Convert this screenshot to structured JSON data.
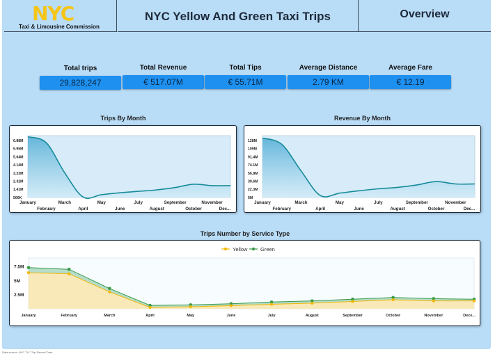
{
  "header": {
    "logo_text": "NYC",
    "logo_subtitle": "Taxi & Limousine Commission",
    "title": "NYC Yellow And Green Taxi Trips",
    "overview": "Overview"
  },
  "kpis": [
    {
      "label": "Total trips",
      "value": "29,828,247"
    },
    {
      "label": "Total Revenue",
      "value": "€ 517.07M"
    },
    {
      "label": "Total Tips",
      "value": "€ 55.71M"
    },
    {
      "label": "Average Distance",
      "value": "2.79 KM"
    },
    {
      "label": "Average Fare",
      "value": "€ 12.19"
    }
  ],
  "colors": {
    "background": "#b9dcf7",
    "kpi_box": "#1e90f0",
    "line_teal": "#168a9a",
    "yellow": "#f2b705",
    "green": "#3a9a4a"
  },
  "chart_data": [
    {
      "type": "area",
      "title": "Trips By Month",
      "months_top": [
        "January",
        "March",
        "May",
        "July",
        "September",
        "November"
      ],
      "months_bottom": [
        "February",
        "April",
        "June",
        "August",
        "October",
        "Dec..."
      ],
      "y_ticks": [
        "6.88M",
        "5.95M",
        "5.04M",
        "4.14M",
        "3.23M",
        "2.32M",
        "1.41M",
        "500K"
      ],
      "x": [
        "January",
        "February",
        "March",
        "April",
        "May",
        "June",
        "July",
        "August",
        "September",
        "October",
        "November",
        "December"
      ],
      "values": [
        6.88,
        6.25,
        3.1,
        0.55,
        0.8,
        1.0,
        1.15,
        1.3,
        1.55,
        1.9,
        1.75,
        1.75
      ],
      "ylim": [
        0.5,
        7.0
      ],
      "unit": "M"
    },
    {
      "type": "area",
      "title": "Revenue By Month",
      "months_top": [
        "January",
        "March",
        "May",
        "July",
        "September",
        "November"
      ],
      "months_bottom": [
        "February",
        "April",
        "June",
        "August",
        "October",
        "Dec..."
      ],
      "y_ticks": [
        "128M",
        "109M",
        "91.4M",
        "74.1M",
        "56.8M",
        "39.6M",
        "22.3M",
        "5M"
      ],
      "x": [
        "January",
        "February",
        "March",
        "April",
        "May",
        "June",
        "July",
        "August",
        "September",
        "October",
        "November",
        "December"
      ],
      "values": [
        128,
        115,
        60,
        9,
        14,
        19,
        23,
        26,
        31,
        38,
        33,
        33
      ],
      "ylim": [
        5,
        133
      ],
      "unit": "M"
    },
    {
      "type": "area",
      "title": "Trips Number by Service Type",
      "legend": [
        "Yellow",
        "Green"
      ],
      "y_ticks": [
        "7.5M",
        "5M",
        "2.5M"
      ],
      "x": [
        "January",
        "February",
        "March",
        "April",
        "May",
        "June",
        "July",
        "August",
        "September",
        "October",
        "November",
        "December"
      ],
      "x_labels": [
        "January",
        "February",
        "March",
        "April",
        "May",
        "June",
        "July",
        "August",
        "September",
        "October",
        "November",
        "Dece..."
      ],
      "series": [
        {
          "name": "Yellow",
          "values": [
            6.4,
            6.2,
            3.0,
            0.25,
            0.35,
            0.55,
            0.8,
            1.0,
            1.3,
            1.6,
            1.4,
            1.4
          ]
        },
        {
          "name": "Green",
          "values": [
            7.3,
            7.0,
            3.6,
            0.6,
            0.7,
            0.9,
            1.2,
            1.4,
            1.7,
            2.0,
            1.8,
            1.7
          ]
        }
      ],
      "ylim": [
        0,
        9
      ]
    }
  ],
  "footnote": "Data source: NYC TLC Trip Record Data"
}
